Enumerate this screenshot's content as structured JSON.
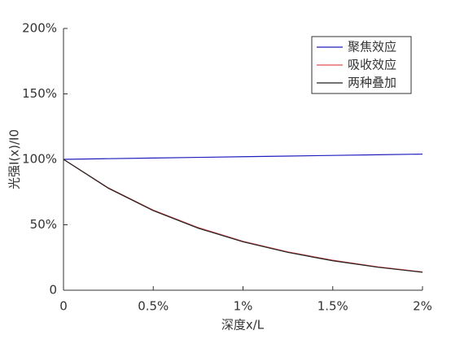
{
  "chart_data": {
    "type": "line",
    "xlabel": "深度x/L",
    "ylabel": "光强I(x)/I0",
    "x": [
      0,
      0.25,
      0.5,
      0.75,
      1,
      1.25,
      1.5,
      1.75,
      2
    ],
    "series": [
      {
        "name": "聚焦效应",
        "color": "#1f1fbf",
        "values": [
          100,
          100.5,
          101,
          101.5,
          102,
          102.5,
          103,
          103.5,
          104
        ]
      },
      {
        "name": "吸收效应",
        "color": "#e05050",
        "values": [
          100,
          78.2,
          61.2,
          47.9,
          37.4,
          29.3,
          22.9,
          17.9,
          14.0
        ]
      },
      {
        "name": "两种叠加",
        "color": "#222222",
        "values": [
          100,
          77.9,
          60.8,
          47.4,
          37.0,
          28.9,
          22.5,
          17.6,
          13.7
        ]
      }
    ],
    "xlim": [
      0,
      2
    ],
    "xticks": [
      0,
      {
        "value": 0.5,
        "label": "0.5%"
      },
      {
        "value": 1,
        "label": "1%"
      },
      {
        "value": 1.5,
        "label": "1.5%"
      },
      {
        "value": 2,
        "label": "2%"
      }
    ],
    "ylim": [
      0,
      200
    ],
    "yticks": [
      0,
      {
        "value": 50,
        "label": "50%"
      },
      {
        "value": 100,
        "label": "100%"
      },
      {
        "value": 150,
        "label": "150%"
      },
      {
        "value": 200,
        "label": "200%"
      }
    ],
    "legend": "top-right"
  }
}
